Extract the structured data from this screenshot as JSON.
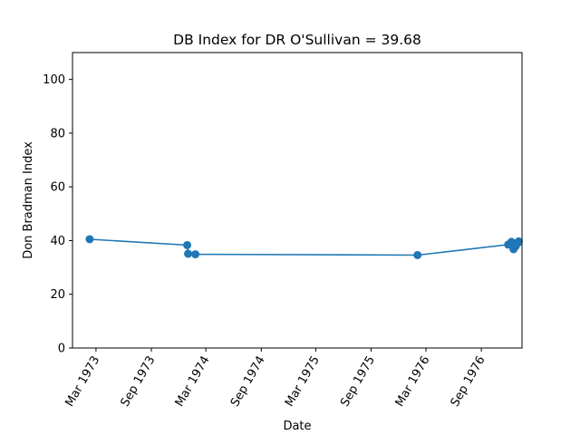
{
  "chart_data": {
    "type": "line",
    "title": "DB Index for DR O'Sullivan = 39.68",
    "xlabel": "Date",
    "ylabel": "Don Bradman Index",
    "ylim": [
      0,
      110
    ],
    "xlim": [
      "1972-12-13",
      "1977-01-14"
    ],
    "y_ticks": [
      0,
      20,
      40,
      60,
      80,
      100
    ],
    "x_ticks": [
      {
        "date": "1973-03-01",
        "label": "Mar 1973"
      },
      {
        "date": "1973-09-01",
        "label": "Sep 1973"
      },
      {
        "date": "1974-03-01",
        "label": "Mar 1974"
      },
      {
        "date": "1974-09-01",
        "label": "Sep 1974"
      },
      {
        "date": "1975-03-01",
        "label": "Mar 1975"
      },
      {
        "date": "1975-09-01",
        "label": "Sep 1975"
      },
      {
        "date": "1976-03-01",
        "label": "Mar 1976"
      },
      {
        "date": "1976-09-01",
        "label": "Sep 1976"
      }
    ],
    "grid": false,
    "series": [
      {
        "color": "#1f77b4",
        "marker": "circle",
        "points": [
          {
            "x": "1973-02-08",
            "y": 40.5
          },
          {
            "x": "1973-12-29",
            "y": 38.3
          },
          {
            "x": "1974-01-01",
            "y": 35.1
          },
          {
            "x": "1974-01-25",
            "y": 34.9
          },
          {
            "x": "1976-02-02",
            "y": 34.6
          },
          {
            "x": "1976-11-29",
            "y": 38.5
          },
          {
            "x": "1976-12-10",
            "y": 39.5
          },
          {
            "x": "1976-12-17",
            "y": 36.8
          },
          {
            "x": "1976-12-24",
            "y": 37.9
          },
          {
            "x": "1976-12-31",
            "y": 39.1
          },
          {
            "x": "1977-01-03",
            "y": 39.68
          }
        ]
      }
    ]
  }
}
